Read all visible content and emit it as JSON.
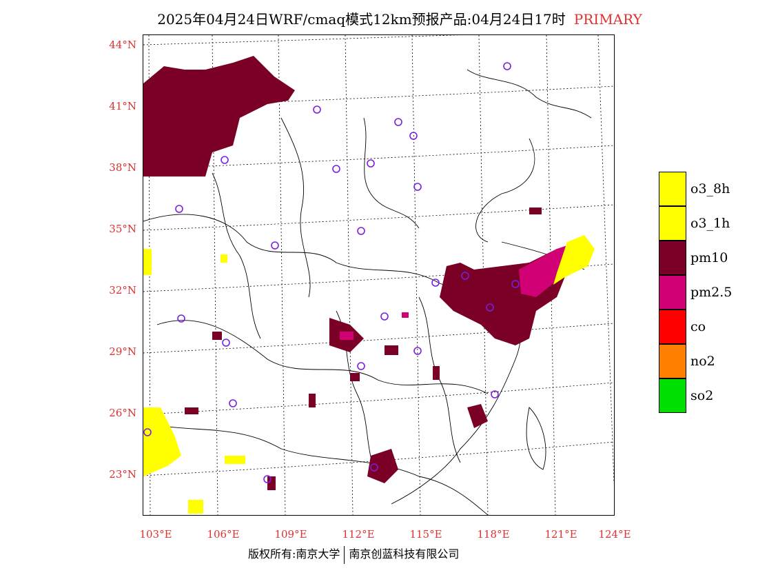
{
  "header": {
    "title": "2025年04月24日WRF/cmaq模式12km预报产品:04月24日17时",
    "primary_tag": "PRIMARY"
  },
  "map": {
    "lat_labels": [
      "44°N",
      "41°N",
      "38°N",
      "35°N",
      "32°N",
      "29°N",
      "26°N",
      "23°N"
    ],
    "lon_labels": [
      "103°E",
      "106°E",
      "109°E",
      "112°E",
      "115°E",
      "118°E",
      "121°E",
      "124°E"
    ]
  },
  "legend": {
    "items": [
      {
        "label": "o3_8h",
        "color": "#ffff00"
      },
      {
        "label": "o3_1h",
        "color": "#ffff00"
      },
      {
        "label": "pm10",
        "color": "#7a0026"
      },
      {
        "label": "pm2.5",
        "color": "#d10074"
      },
      {
        "label": "co",
        "color": "#ff0000"
      },
      {
        "label": "no2",
        "color": "#ff7f00"
      },
      {
        "label": "so2",
        "color": "#00e000"
      }
    ]
  },
  "footer": {
    "left": "版权所有:南京大学",
    "right": "南京创蓝科技有限公司"
  }
}
